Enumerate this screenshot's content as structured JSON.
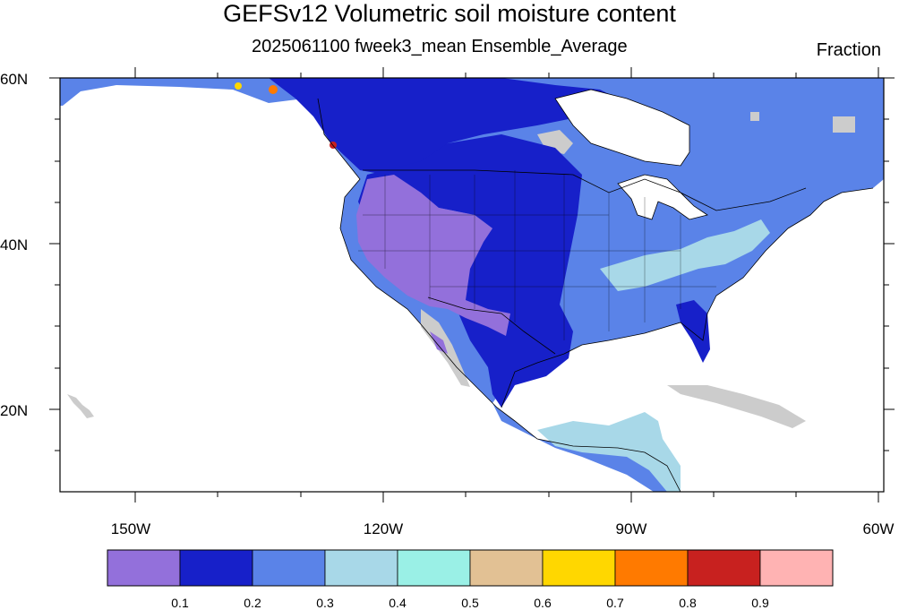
{
  "title": "GEFSv12 Volumetric soil moisture content",
  "subtitle": "2025061100 fweek3_mean Ensemble_Average",
  "units": "Fraction",
  "lat_labels": [
    "60N",
    "40N",
    "20N"
  ],
  "lon_labels": [
    "150W",
    "120W",
    "90W",
    "60W"
  ],
  "colorbar": {
    "labels": [
      "0.1",
      "0.2",
      "0.3",
      "0.4",
      "0.5",
      "0.6",
      "0.7",
      "0.8",
      "0.9"
    ],
    "colors": [
      "#9370db",
      "#1720c9",
      "#5a83e8",
      "#a8d8e8",
      "#9af0e6",
      "#e2c194",
      "#ffd700",
      "#ff7a00",
      "#c8211f",
      "#ffb3b3"
    ]
  },
  "map_colors": {
    "dry": "#9370db",
    "low": "#1720c9",
    "mid": "#5a83e8",
    "moist": "#a8d8e8",
    "wet": "#9af0e6",
    "missing": "#cccccc",
    "coast": "#000000"
  }
}
